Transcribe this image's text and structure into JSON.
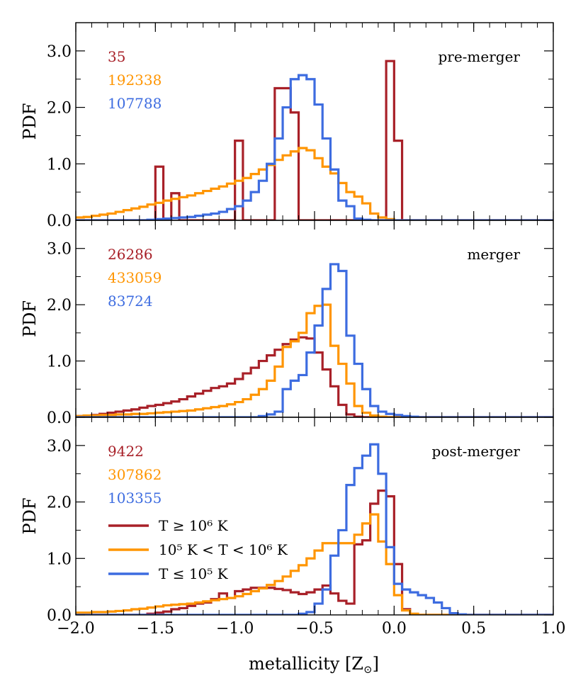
{
  "chart_data": [
    {
      "type": "histogram",
      "panel": "pre-merger",
      "title": "pre-merger",
      "ylabel": "PDF",
      "xlabel": "",
      "xlim": [
        -2.0,
        1.0
      ],
      "ylim": [
        0.0,
        3.5
      ],
      "bin_width": 0.05,
      "counts": [
        "35",
        "192338",
        "107788"
      ],
      "series": [
        {
          "name": "hot",
          "color": "#a82028",
          "start": -2.0,
          "values": [
            0,
            0,
            0,
            0,
            0,
            0,
            0,
            0,
            0,
            0,
            0.95,
            0,
            0.48,
            0,
            0,
            0,
            0,
            0,
            0,
            0,
            1.41,
            0,
            0,
            0,
            0,
            2.34,
            2.34,
            1.91,
            0,
            0,
            0,
            0,
            0,
            0,
            0,
            0,
            0,
            0,
            0,
            2.82,
            1.41,
            0,
            0,
            0,
            0,
            0,
            0,
            0,
            0,
            0,
            0,
            0,
            0,
            0,
            0,
            0,
            0,
            0,
            0,
            0
          ]
        },
        {
          "name": "warm",
          "color": "#ff9500",
          "start": -2.0,
          "values": [
            0.05,
            0.06,
            0.08,
            0.1,
            0.12,
            0.15,
            0.18,
            0.21,
            0.24,
            0.28,
            0.31,
            0.35,
            0.38,
            0.41,
            0.44,
            0.48,
            0.52,
            0.56,
            0.6,
            0.65,
            0.7,
            0.75,
            0.82,
            0.9,
            0.98,
            1.07,
            1.15,
            1.22,
            1.28,
            1.24,
            1.1,
            0.95,
            0.83,
            0.66,
            0.5,
            0.42,
            0.3,
            0.12,
            0.05,
            0.02,
            0,
            0,
            0,
            0,
            0,
            0,
            0,
            0,
            0,
            0,
            0,
            0,
            0,
            0,
            0,
            0,
            0,
            0,
            0,
            0
          ]
        },
        {
          "name": "cold",
          "color": "#3d6ce0",
          "start": -2.0,
          "values": [
            0,
            0,
            0,
            0,
            0,
            0,
            0,
            0,
            0,
            0.01,
            0.02,
            0.03,
            0.04,
            0.05,
            0.06,
            0.08,
            0.1,
            0.12,
            0.15,
            0.2,
            0.25,
            0.35,
            0.5,
            0.7,
            1.0,
            1.45,
            2.0,
            2.5,
            2.57,
            2.5,
            2.05,
            1.45,
            0.9,
            0.35,
            0.25,
            0.03,
            0.01,
            0,
            0,
            0,
            0,
            0,
            0,
            0,
            0,
            0,
            0,
            0,
            0,
            0,
            0,
            0,
            0,
            0,
            0,
            0,
            0,
            0,
            0,
            0
          ]
        }
      ]
    },
    {
      "type": "histogram",
      "panel": "merger",
      "title": "merger",
      "ylabel": "PDF",
      "xlabel": "",
      "xlim": [
        -2.0,
        1.0
      ],
      "ylim": [
        0.0,
        3.5
      ],
      "bin_width": 0.05,
      "counts": [
        "26286",
        "433059",
        "83724"
      ],
      "series": [
        {
          "name": "hot",
          "color": "#a82028",
          "start": -2.0,
          "values": [
            0.02,
            0.03,
            0.04,
            0.06,
            0.08,
            0.1,
            0.12,
            0.14,
            0.17,
            0.2,
            0.22,
            0.25,
            0.28,
            0.32,
            0.37,
            0.42,
            0.47,
            0.52,
            0.55,
            0.6,
            0.68,
            0.78,
            0.88,
            1.0,
            1.1,
            1.2,
            1.3,
            1.38,
            1.42,
            1.4,
            1.15,
            0.85,
            0.55,
            0.22,
            0.05,
            0.01,
            0,
            0,
            0,
            0,
            0,
            0,
            0,
            0,
            0,
            0,
            0,
            0,
            0,
            0,
            0,
            0,
            0,
            0,
            0,
            0,
            0,
            0,
            0,
            0
          ]
        },
        {
          "name": "warm",
          "color": "#ff9500",
          "start": -2.0,
          "values": [
            0.02,
            0.03,
            0.03,
            0.04,
            0.04,
            0.05,
            0.05,
            0.06,
            0.06,
            0.07,
            0.08,
            0.09,
            0.1,
            0.11,
            0.12,
            0.14,
            0.16,
            0.18,
            0.2,
            0.23,
            0.27,
            0.32,
            0.4,
            0.5,
            0.65,
            0.9,
            1.25,
            1.35,
            1.5,
            1.85,
            1.98,
            2.0,
            1.27,
            0.95,
            0.6,
            0.2,
            0.08,
            0.03,
            0.01,
            0,
            0,
            0,
            0,
            0,
            0,
            0,
            0,
            0,
            0,
            0,
            0,
            0,
            0,
            0,
            0,
            0,
            0,
            0,
            0,
            0
          ]
        },
        {
          "name": "cold",
          "color": "#3d6ce0",
          "start": -2.0,
          "values": [
            0,
            0,
            0,
            0,
            0,
            0,
            0,
            0,
            0,
            0,
            0,
            0,
            0,
            0,
            0,
            0,
            0,
            0,
            0,
            0,
            0,
            0,
            0,
            0.02,
            0.05,
            0.1,
            0.5,
            0.65,
            0.75,
            1.15,
            1.63,
            2.28,
            2.72,
            2.6,
            1.45,
            0.95,
            0.5,
            0.2,
            0.1,
            0.06,
            0.04,
            0.02,
            0.01,
            0,
            0,
            0,
            0,
            0,
            0,
            0,
            0,
            0,
            0,
            0,
            0,
            0,
            0,
            0,
            0,
            0
          ]
        }
      ]
    },
    {
      "type": "histogram",
      "panel": "post-merger",
      "title": "post-merger",
      "ylabel": "PDF",
      "xlabel": "metallicity [Z⊙]",
      "xlim": [
        -2.0,
        1.0
      ],
      "ylim": [
        0.0,
        3.5
      ],
      "bin_width": 0.05,
      "counts": [
        "9422",
        "307862",
        "103355"
      ],
      "series": [
        {
          "name": "hot",
          "color": "#a82028",
          "start": -2.0,
          "values": [
            0,
            0,
            0,
            0,
            0,
            0,
            0,
            0,
            0,
            0.02,
            0.04,
            0.06,
            0.1,
            0.12,
            0.16,
            0.2,
            0.22,
            0.28,
            0.38,
            0.3,
            0.42,
            0.45,
            0.48,
            0.48,
            0.48,
            0.46,
            0.44,
            0.4,
            0.37,
            0.4,
            0.45,
            0.52,
            0.38,
            0.25,
            0.2,
            1.25,
            1.32,
            1.97,
            2.2,
            2.1,
            0.9,
            0.1,
            0,
            0,
            0,
            0,
            0,
            0,
            0,
            0,
            0,
            0,
            0,
            0,
            0,
            0,
            0,
            0,
            0,
            0
          ]
        },
        {
          "name": "warm",
          "color": "#ff9500",
          "start": -2.0,
          "values": [
            0.04,
            0.04,
            0.05,
            0.05,
            0.06,
            0.07,
            0.08,
            0.1,
            0.11,
            0.13,
            0.15,
            0.17,
            0.18,
            0.19,
            0.2,
            0.22,
            0.24,
            0.26,
            0.28,
            0.3,
            0.33,
            0.37,
            0.42,
            0.47,
            0.53,
            0.6,
            0.68,
            0.78,
            0.88,
            1.0,
            1.14,
            1.27,
            1.27,
            1.27,
            1.27,
            1.42,
            1.62,
            1.78,
            1.3,
            0.9,
            0.35,
            0.08,
            0.02,
            0,
            0,
            0,
            0,
            0,
            0,
            0,
            0,
            0,
            0,
            0,
            0,
            0,
            0,
            0,
            0,
            0
          ]
        },
        {
          "name": "cold",
          "color": "#3d6ce0",
          "start": -2.0,
          "values": [
            0,
            0,
            0,
            0,
            0,
            0,
            0,
            0,
            0,
            0,
            0,
            0,
            0,
            0,
            0,
            0,
            0,
            0,
            0,
            0,
            0,
            0,
            0,
            0,
            0,
            0,
            0,
            0,
            0.02,
            0.05,
            0.2,
            0.45,
            1.05,
            1.5,
            2.3,
            2.6,
            2.82,
            3.02,
            2.5,
            1.2,
            0.55,
            0.45,
            0.4,
            0.35,
            0.3,
            0.22,
            0.12,
            0.03,
            0.01,
            0,
            0,
            0,
            0,
            0,
            0,
            0,
            0,
            0,
            0,
            0
          ]
        }
      ]
    }
  ],
  "axes": {
    "x_ticks": [
      -2.0,
      -1.5,
      -1.0,
      -0.5,
      0.0,
      0.5,
      1.0
    ],
    "x_tick_labels": [
      "−2.0",
      "−1.5",
      "−1.0",
      "−0.5",
      "0.0",
      "0.5",
      "1.0"
    ],
    "y_ticks": [
      0.0,
      1.0,
      2.0,
      3.0
    ],
    "y_tick_labels": [
      "0.0",
      "1.0",
      "2.0",
      "3.0"
    ],
    "xlabel_main": "metallicity [Z",
    "xlabel_sub": "⊙",
    "xlabel_close": "]"
  },
  "legend": {
    "placement": "lower-left of bottom panel",
    "entries": [
      {
        "color": "#a82028",
        "label": "T ≥ 10⁶ K"
      },
      {
        "color": "#ff9500",
        "label": "10⁵ K < T < 10⁶ K"
      },
      {
        "color": "#3d6ce0",
        "label": "T ≤ 10⁵ K"
      }
    ]
  },
  "colors": {
    "hot": "#a82028",
    "warm": "#ff9500",
    "cold": "#3d6ce0",
    "axis": "#000000"
  }
}
